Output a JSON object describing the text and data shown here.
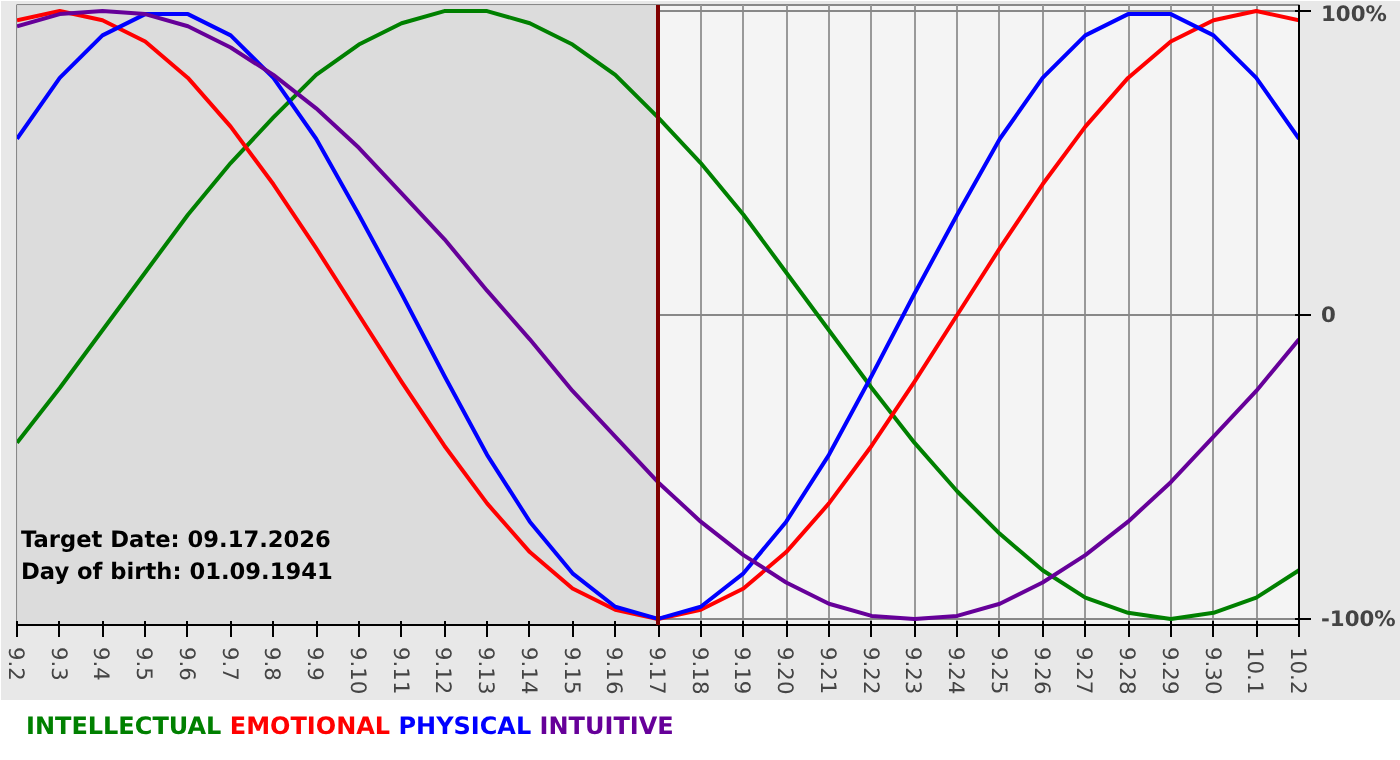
{
  "chart_data": {
    "type": "line",
    "categories": [
      "9.2",
      "9.3",
      "9.4",
      "9.5",
      "9.6",
      "9.7",
      "9.8",
      "9.9",
      "9.10",
      "9.11",
      "9.12",
      "9.13",
      "9.14",
      "9.15",
      "9.16",
      "9.17",
      "9.18",
      "9.19",
      "9.20",
      "9.21",
      "9.22",
      "9.23",
      "9.24",
      "9.25",
      "9.26",
      "9.27",
      "9.28",
      "9.29",
      "9.30",
      "10.1",
      "10.2"
    ],
    "series": [
      {
        "name": "INTELLECTUAL",
        "color": "#008000",
        "values": [
          -42,
          -24,
          -5,
          14,
          33,
          50,
          65,
          79,
          89,
          96,
          100,
          100,
          96,
          89,
          79,
          65,
          50,
          33,
          14,
          -5,
          -24,
          -42,
          -58,
          -72,
          -84,
          -93,
          -98,
          -100,
          -98,
          -93,
          -84
        ]
      },
      {
        "name": "EMOTIONAL",
        "color": "#ff0000",
        "values": [
          97,
          100,
          97,
          90,
          78,
          62,
          43,
          22,
          0,
          -22,
          -43,
          -62,
          -78,
          -90,
          -97,
          -100,
          -97,
          -90,
          -78,
          -62,
          -43,
          -22,
          0,
          22,
          43,
          62,
          78,
          90,
          97,
          100,
          97
        ]
      },
      {
        "name": "PHYSICAL",
        "color": "#0000ff",
        "values": [
          58,
          78,
          92,
          99,
          99,
          92,
          78,
          58,
          33,
          7,
          -20,
          -46,
          -68,
          -85,
          -96,
          -100,
          -96,
          -85,
          -68,
          -46,
          -20,
          7,
          33,
          58,
          78,
          92,
          99,
          99,
          92,
          78,
          58
        ]
      },
      {
        "name": "INTUITIVE",
        "color": "#660099",
        "values": [
          95,
          99,
          100,
          99,
          95,
          88,
          79,
          68,
          55,
          40,
          25,
          8,
          -8,
          -25,
          -40,
          -55,
          -68,
          -79,
          -88,
          -95,
          -99,
          -100,
          -99,
          -95,
          -88,
          -79,
          -68,
          -55,
          -40,
          -25,
          -8
        ]
      }
    ],
    "ylim": [
      -102,
      102
    ],
    "yticks": [
      {
        "value": 100,
        "label": "100%"
      },
      0,
      {
        "value": -100,
        "label": "-100%"
      }
    ],
    "ref_lines": [
      {
        "axis": "x",
        "value": "9.17",
        "color": "#800000"
      }
    ],
    "bands": [
      {
        "axis": "x",
        "from": "9.2",
        "to": "9.17",
        "color": "#dcdcdc"
      }
    ],
    "annotations": [
      "Target Date: 09.17.2026",
      "Day of birth: 01.09.1941"
    ],
    "grid": true,
    "legend": "bottom"
  }
}
